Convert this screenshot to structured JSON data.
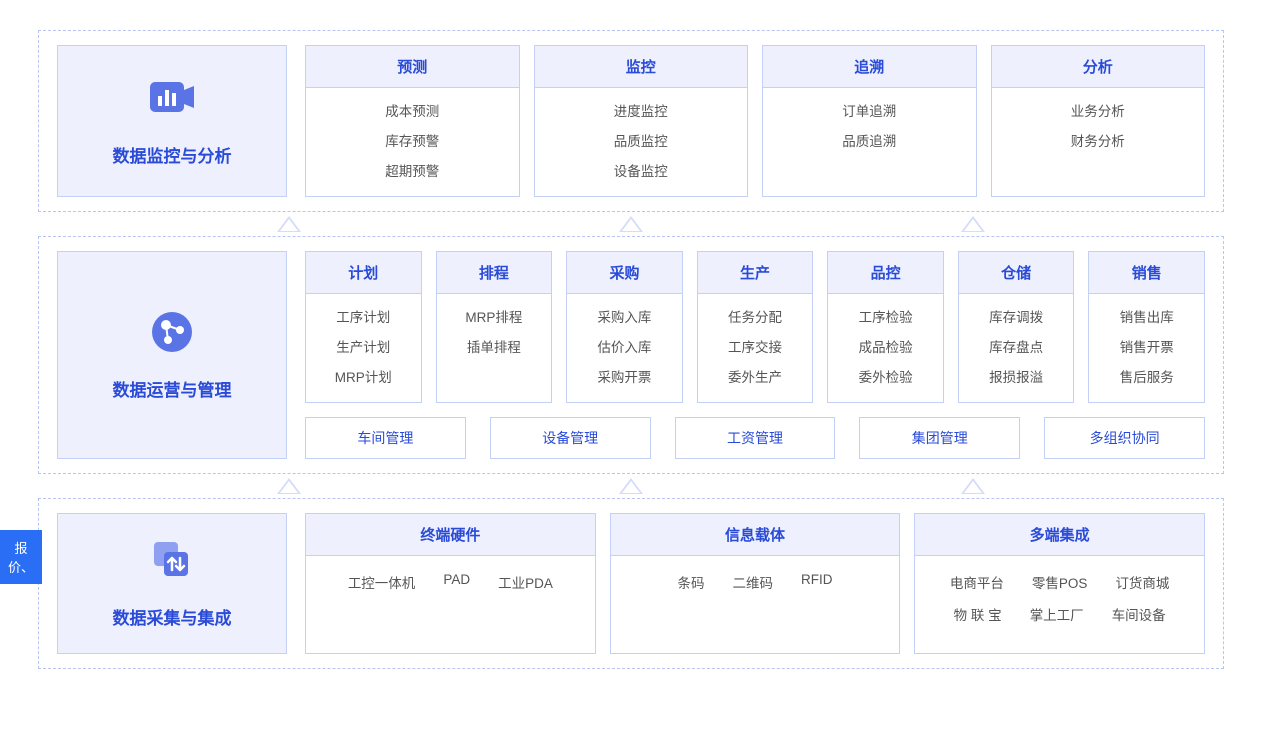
{
  "colors": {
    "accent": "#2a4bd7",
    "panel_bg": "#eef1fd",
    "border": "#c5d0f7",
    "dashed_border": "#b8c4f5",
    "arrow": "#d5dcf9",
    "side_tab_bg": "#2a6ef5",
    "text": "#555555",
    "page_bg": "#ffffff"
  },
  "side_tab": "报价、",
  "sections": [
    {
      "id": "monitor",
      "title": "数据监控与分析",
      "icon": "chart-camera-icon",
      "boxes": [
        {
          "head": "预测",
          "items": [
            "成本预测",
            "库存预警",
            "超期预警"
          ]
        },
        {
          "head": "监控",
          "items": [
            "进度监控",
            "品质监控",
            "设备监控"
          ]
        },
        {
          "head": "追溯",
          "items": [
            "订单追溯",
            "品质追溯"
          ]
        },
        {
          "head": "分析",
          "items": [
            "业务分析",
            "财务分析"
          ]
        }
      ]
    },
    {
      "id": "ops",
      "title": "数据运营与管理",
      "icon": "nodes-icon",
      "boxes": [
        {
          "head": "计划",
          "items": [
            "工序计划",
            "生产计划",
            "MRP计划"
          ]
        },
        {
          "head": "排程",
          "items": [
            "MRP排程",
            "插单排程"
          ]
        },
        {
          "head": "采购",
          "items": [
            "采购入库",
            "估价入库",
            "采购开票"
          ]
        },
        {
          "head": "生产",
          "items": [
            "任务分配",
            "工序交接",
            "委外生产"
          ]
        },
        {
          "head": "品控",
          "items": [
            "工序检验",
            "成品检验",
            "委外检验"
          ]
        },
        {
          "head": "仓储",
          "items": [
            "库存调拨",
            "库存盘点",
            "报损报溢"
          ]
        },
        {
          "head": "销售",
          "items": [
            "销售出库",
            "销售开票",
            "售后服务"
          ]
        }
      ],
      "tags": [
        "车间管理",
        "设备管理",
        "工资管理",
        "集团管理",
        "多组织协同"
      ]
    },
    {
      "id": "collect",
      "title": "数据采集与集成",
      "icon": "transfer-icon",
      "wide_boxes": [
        {
          "head": "终端硬件",
          "items": [
            "工控一体机",
            "PAD",
            "工业PDA"
          ]
        },
        {
          "head": "信息载体",
          "items": [
            "条码",
            "二维码",
            "RFID"
          ]
        },
        {
          "head": "多端集成",
          "items": [
            "电商平台",
            "零售POS",
            "订货商城",
            "物 联 宝",
            "掌上工厂",
            "车间设备"
          ]
        }
      ]
    }
  ],
  "arrow_counts": {
    "after_monitor": 3,
    "after_ops": 3
  }
}
